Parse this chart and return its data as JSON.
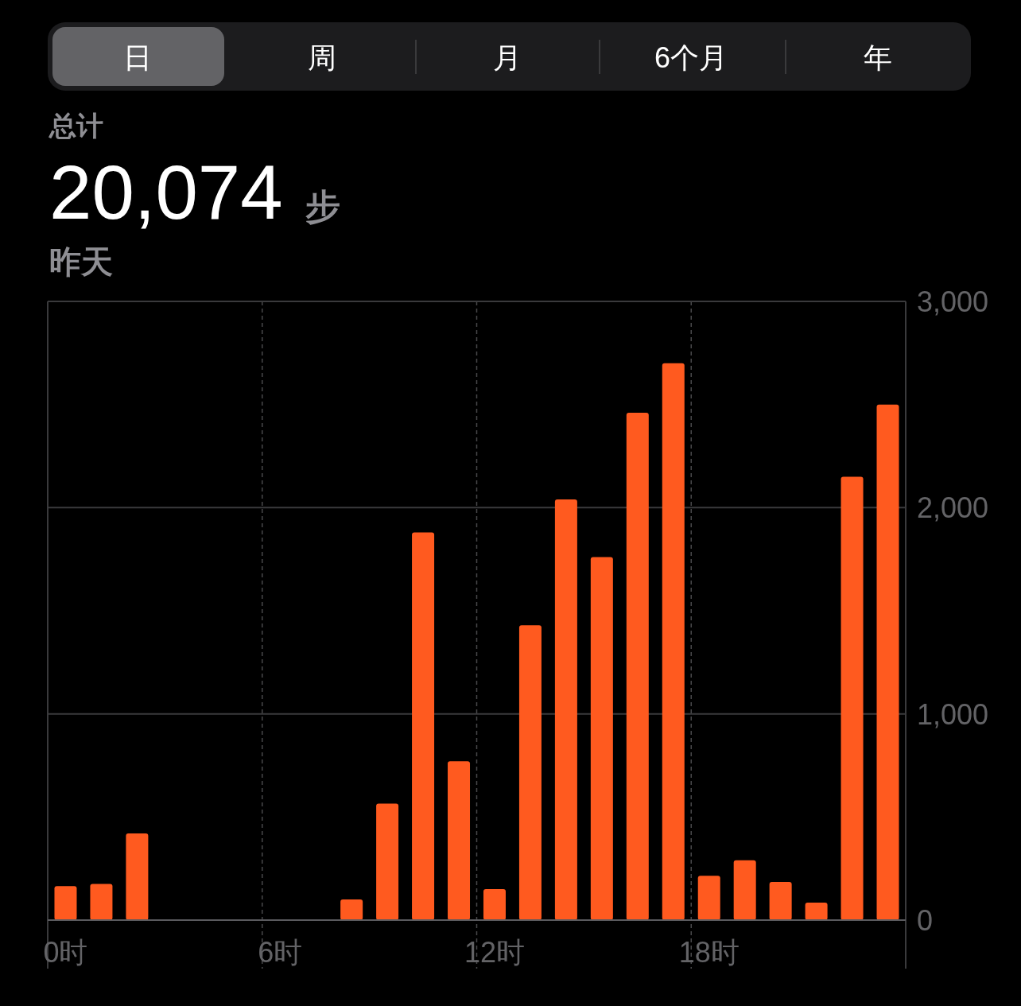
{
  "chart_data": {
    "type": "bar",
    "title": "20,074",
    "subtitle": "昨天",
    "annotations": [
      "日",
      "周",
      "月",
      "6个月",
      "年",
      "总计",
      "步"
    ],
    "categories": [
      "0时",
      null,
      null,
      null,
      null,
      null,
      "6时",
      null,
      null,
      null,
      null,
      null,
      "12时",
      null,
      null,
      null,
      null,
      null,
      "18时",
      null,
      null,
      null,
      null,
      null
    ],
    "values": [
      165,
      175,
      420,
      0,
      0,
      0,
      0,
      0,
      100,
      565,
      1880,
      770,
      150,
      1430,
      2040,
      1760,
      2460,
      2700,
      215,
      290,
      185,
      85,
      2150,
      2500
    ],
    "color": "#ff5a1f",
    "ylim": [
      0,
      3000
    ],
    "yticks": [
      0,
      {
        "value": 1000,
        "label": "1,000"
      },
      {
        "value": 2000,
        "label": "2,000"
      },
      {
        "value": 3000,
        "label": "3,000"
      }
    ],
    "grid": true
  }
}
